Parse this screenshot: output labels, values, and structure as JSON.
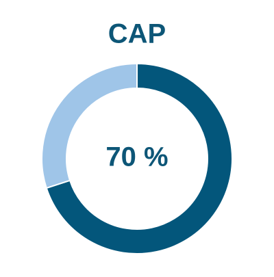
{
  "chart_data": {
    "type": "donut",
    "title": "CAP",
    "values": [
      70,
      30
    ],
    "value_labels": [
      "70 %",
      null
    ],
    "colors": [
      "#03567b",
      "#9fc5e8"
    ],
    "start_angle": 0,
    "direction": "clockwise"
  }
}
